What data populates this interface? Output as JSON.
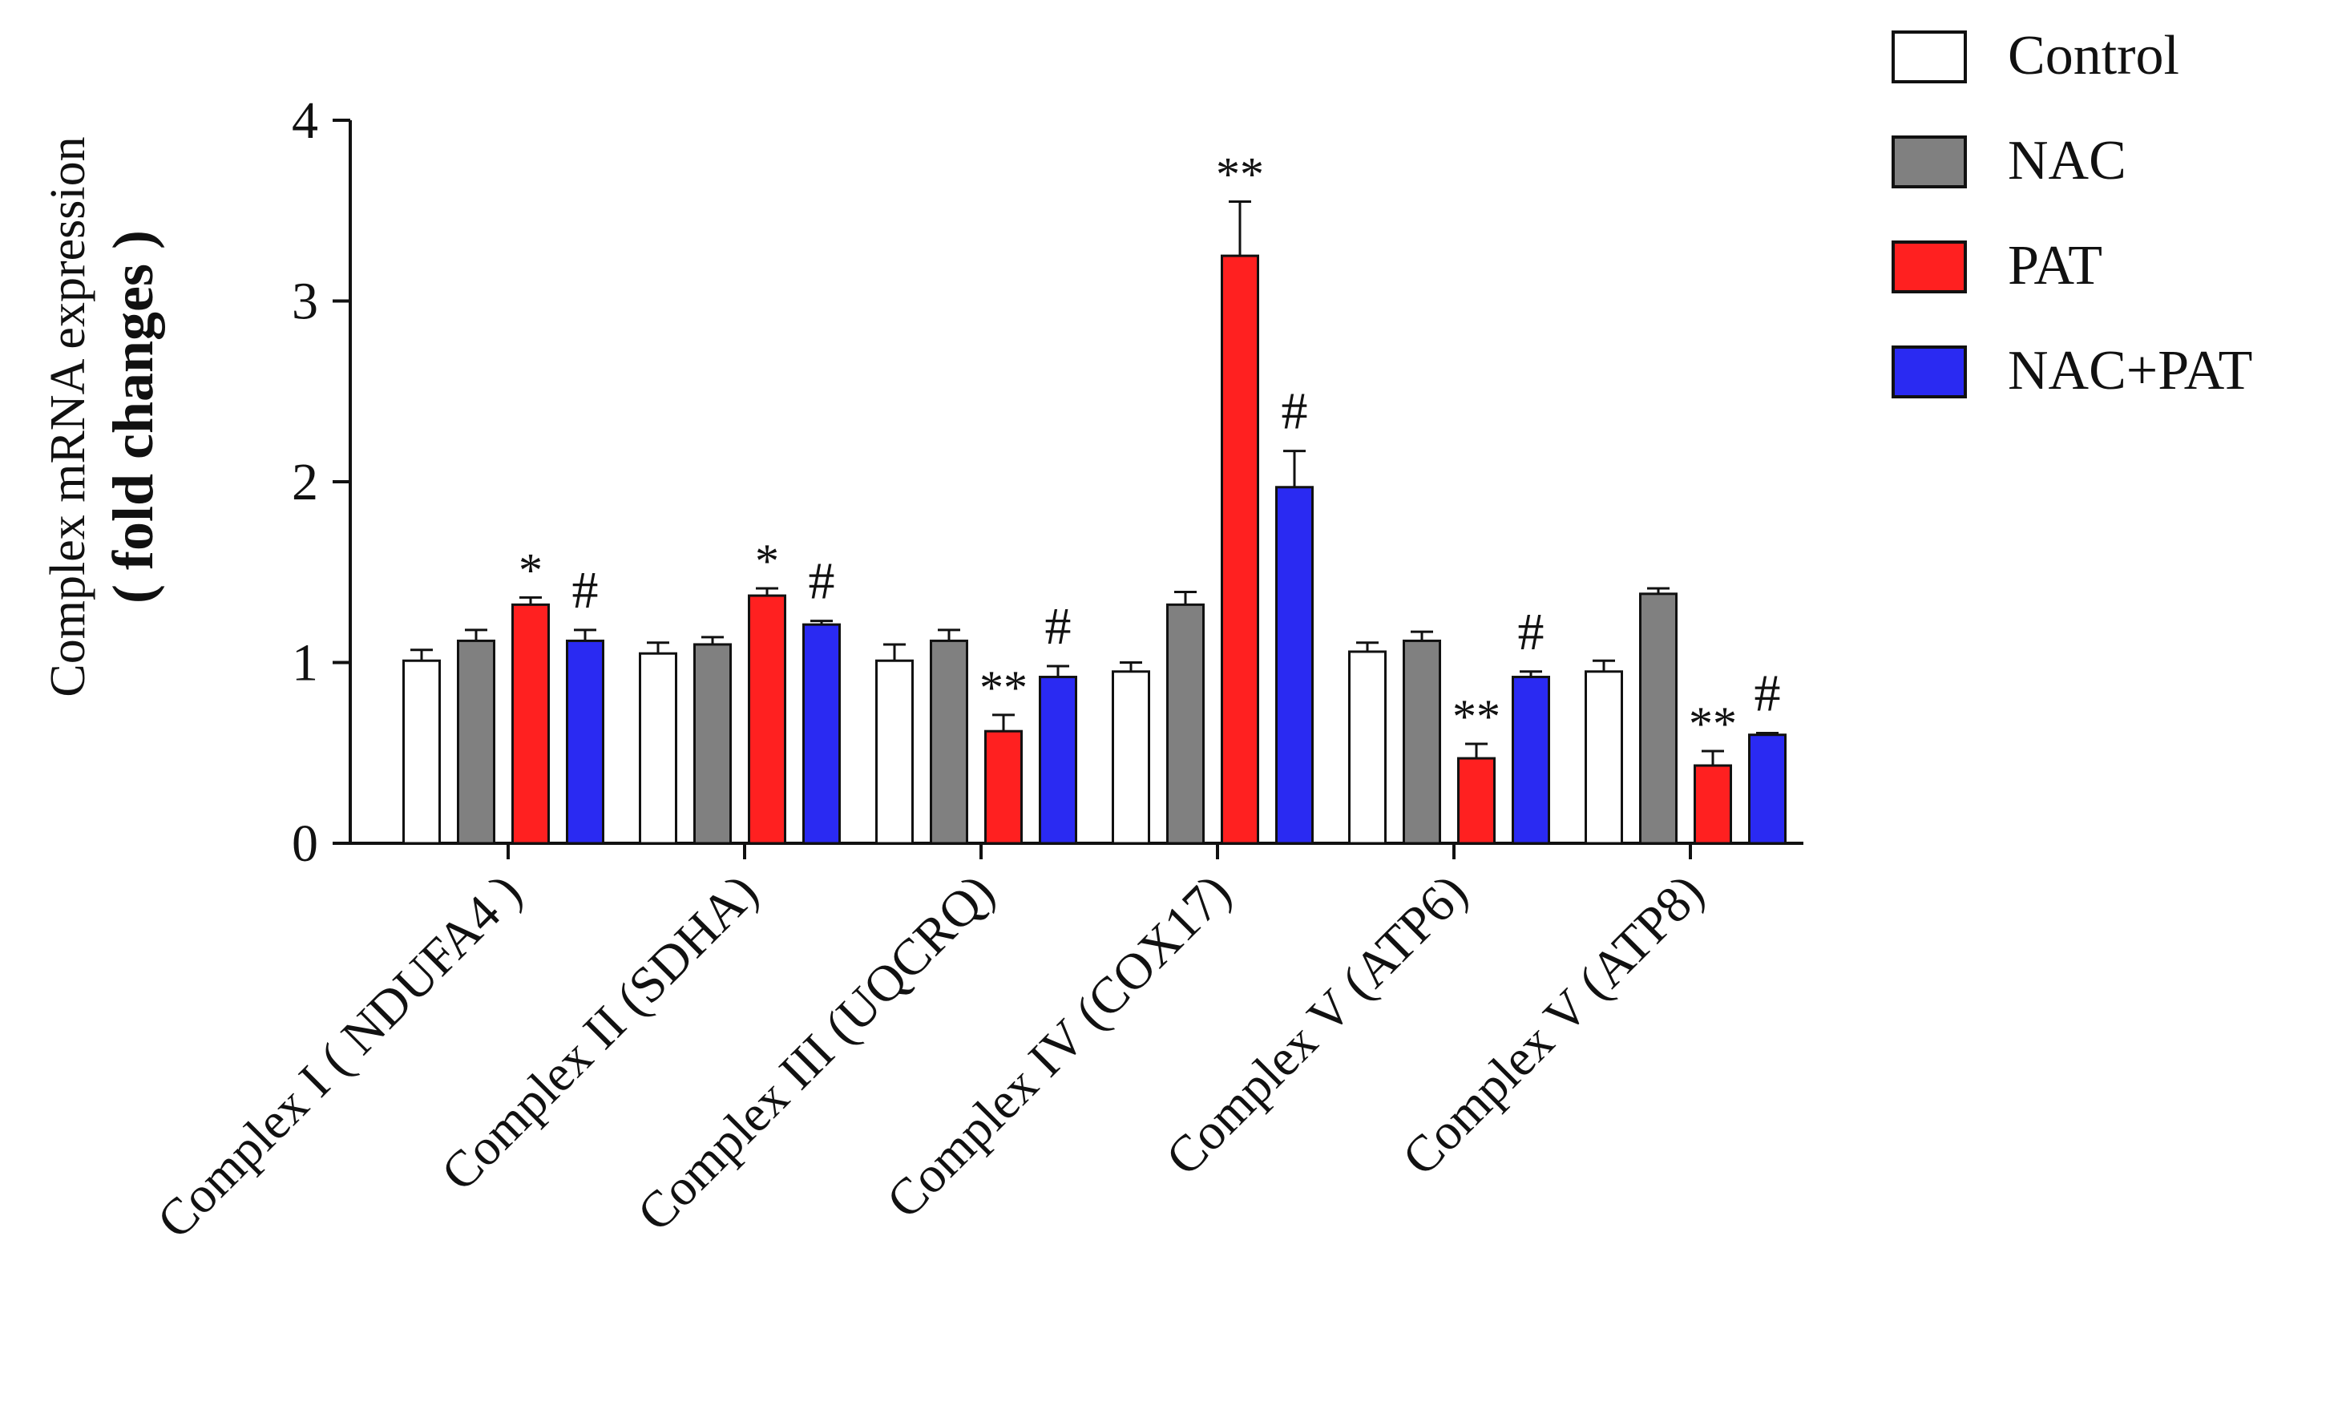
{
  "chart_data": {
    "type": "bar",
    "title": "",
    "xlabel": "",
    "ylabel_line1": "Complex mRNA expression",
    "ylabel_line2": "( fold changes )",
    "ylim": [
      0,
      4
    ],
    "yticks": [
      "0",
      "1",
      "2",
      "3",
      "4"
    ],
    "grid": false,
    "legend_position": "top-right",
    "categories": [
      "Complex I ( NDUFA4 )",
      "Complex II (SDHA)",
      "Complex III (UQCRQ)",
      "Complex IV (COX17)",
      "Complex V (ATP6)",
      "Complex V (ATP8)"
    ],
    "series": [
      {
        "name": "Control",
        "color": "#ffffff",
        "values": [
          1.01,
          1.05,
          1.01,
          0.95,
          1.06,
          0.95
        ],
        "errors": [
          0.06,
          0.06,
          0.09,
          0.05,
          0.05,
          0.06
        ],
        "annotations": [
          "",
          "",
          "",
          "",
          "",
          ""
        ]
      },
      {
        "name": "NAC",
        "color": "#808080",
        "values": [
          1.12,
          1.1,
          1.12,
          1.32,
          1.12,
          1.38
        ],
        "errors": [
          0.06,
          0.04,
          0.06,
          0.07,
          0.05,
          0.03
        ],
        "annotations": [
          "",
          "",
          "",
          "",
          "",
          ""
        ]
      },
      {
        "name": "PAT",
        "color": "#ff2020",
        "values": [
          1.32,
          1.37,
          0.62,
          3.25,
          0.47,
          0.43
        ],
        "errors": [
          0.04,
          0.04,
          0.09,
          0.3,
          0.08,
          0.08
        ],
        "annotations": [
          "*",
          "*",
          "**",
          "**",
          "**",
          "**"
        ]
      },
      {
        "name": "NAC+PAT",
        "color": "#2a2af2",
        "values": [
          1.12,
          1.21,
          0.92,
          1.97,
          0.92,
          0.6
        ],
        "errors": [
          0.06,
          0.02,
          0.06,
          0.2,
          0.03,
          0.01
        ],
        "annotations": [
          "#",
          "#",
          "#",
          "#",
          "#",
          "#"
        ]
      }
    ]
  }
}
